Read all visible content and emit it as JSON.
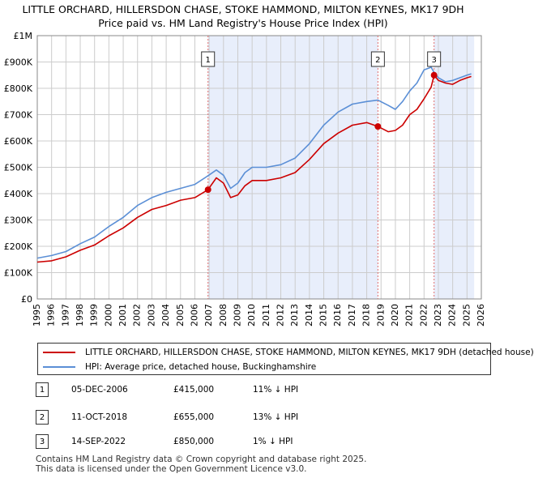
{
  "title_line1": "LITTLE ORCHARD, HILLERSDON CHASE, STOKE HAMMOND, MILTON KEYNES, MK17 9DH",
  "title_line2": "Price paid vs. HM Land Registry's House Price Index (HPI)",
  "colors": {
    "property": "#cc0000",
    "hpi": "#5b8fd6",
    "shade": "#e8eefb",
    "grid": "#cccccc",
    "vline": "#e07070"
  },
  "chart_data": {
    "type": "line",
    "title": "Price paid vs. HM Land Registry's House Price Index (HPI)",
    "xlim": [
      1995,
      2026
    ],
    "ylim": [
      0,
      1000000
    ],
    "x_ticks": [
      "1995",
      "1996",
      "1997",
      "1998",
      "1999",
      "2000",
      "2001",
      "2002",
      "2003",
      "2004",
      "2005",
      "2006",
      "2007",
      "2008",
      "2009",
      "2010",
      "2011",
      "2012",
      "2013",
      "2014",
      "2015",
      "2016",
      "2017",
      "2018",
      "2019",
      "2020",
      "2021",
      "2022",
      "2023",
      "2024",
      "2025",
      "2026"
    ],
    "y_ticks": [
      {
        "value": 0,
        "label": "£0"
      },
      {
        "value": 100000,
        "label": "£100K"
      },
      {
        "value": 200000,
        "label": "£200K"
      },
      {
        "value": 300000,
        "label": "£300K"
      },
      {
        "value": 400000,
        "label": "£400K"
      },
      {
        "value": 500000,
        "label": "£500K"
      },
      {
        "value": 600000,
        "label": "£600K"
      },
      {
        "value": 700000,
        "label": "£700K"
      },
      {
        "value": 800000,
        "label": "£800K"
      },
      {
        "value": 900000,
        "label": "£900K"
      },
      {
        "value": 1000000,
        "label": "£1M"
      }
    ],
    "shaded_periods": [
      [
        2006.92,
        2018.78
      ],
      [
        2022.7,
        2025.5
      ]
    ],
    "series": [
      {
        "name": "LITTLE ORCHARD, HILLERSDON CHASE, STOKE HAMMOND, MILTON KEYNES, MK17 9DH (detached house)",
        "color": "#cc0000",
        "x": [
          1995.0,
          1996.0,
          1997.0,
          1998.0,
          1999.0,
          2000.0,
          2001.0,
          2002.0,
          2003.0,
          2004.0,
          2005.0,
          2006.0,
          2006.92,
          2007.5,
          2008.0,
          2008.5,
          2009.0,
          2009.5,
          2010.0,
          2011.0,
          2012.0,
          2013.0,
          2014.0,
          2015.0,
          2016.0,
          2017.0,
          2018.0,
          2018.78,
          2019.5,
          2020.0,
          2020.5,
          2021.0,
          2021.5,
          2022.0,
          2022.5,
          2022.7,
          2023.0,
          2023.5,
          2024.0,
          2024.5,
          2025.0,
          2025.3
        ],
        "y": [
          140000,
          145000,
          160000,
          185000,
          205000,
          240000,
          270000,
          310000,
          340000,
          355000,
          375000,
          385000,
          415000,
          460000,
          440000,
          385000,
          395000,
          430000,
          450000,
          450000,
          460000,
          480000,
          530000,
          590000,
          630000,
          660000,
          670000,
          655000,
          635000,
          640000,
          660000,
          700000,
          720000,
          760000,
          805000,
          850000,
          830000,
          820000,
          815000,
          830000,
          840000,
          845000
        ]
      },
      {
        "name": "HPI: Average price, detached house, Buckinghamshire",
        "color": "#5b8fd6",
        "x": [
          1995.0,
          1996.0,
          1997.0,
          1998.0,
          1999.0,
          2000.0,
          2001.0,
          2002.0,
          2003.0,
          2004.0,
          2005.0,
          2006.0,
          2006.92,
          2007.5,
          2008.0,
          2008.5,
          2009.0,
          2009.5,
          2010.0,
          2011.0,
          2012.0,
          2013.0,
          2014.0,
          2015.0,
          2016.0,
          2017.0,
          2018.0,
          2018.78,
          2019.5,
          2020.0,
          2020.5,
          2021.0,
          2021.5,
          2022.0,
          2022.5,
          2022.7,
          2023.0,
          2023.5,
          2024.0,
          2024.5,
          2025.0,
          2025.3
        ],
        "y": [
          155000,
          165000,
          180000,
          210000,
          235000,
          275000,
          310000,
          355000,
          385000,
          405000,
          420000,
          435000,
          468000,
          490000,
          470000,
          420000,
          440000,
          480000,
          500000,
          500000,
          510000,
          535000,
          590000,
          660000,
          710000,
          740000,
          750000,
          755000,
          735000,
          720000,
          750000,
          790000,
          820000,
          870000,
          880000,
          860000,
          840000,
          825000,
          830000,
          840000,
          850000,
          855000
        ]
      }
    ],
    "sales": [
      {
        "id": "1",
        "x": 2006.92,
        "y": 415000
      },
      {
        "id": "2",
        "x": 2018.78,
        "y": 655000
      },
      {
        "id": "3",
        "x": 2022.7,
        "y": 850000
      }
    ]
  },
  "legend": {
    "property_label": "LITTLE ORCHARD, HILLERSDON CHASE, STOKE HAMMOND, MILTON KEYNES, MK17 9DH (detached house)",
    "hpi_label": "HPI: Average price, detached house, Buckinghamshire"
  },
  "sales_table": [
    {
      "num": "1",
      "date": "05-DEC-2006",
      "price": "£415,000",
      "hpi": "11% ↓ HPI"
    },
    {
      "num": "2",
      "date": "11-OCT-2018",
      "price": "£655,000",
      "hpi": "13% ↓ HPI"
    },
    {
      "num": "3",
      "date": "14-SEP-2022",
      "price": "£850,000",
      "hpi": "1% ↓ HPI"
    }
  ],
  "footer_line1": "Contains HM Land Registry data © Crown copyright and database right 2025.",
  "footer_line2": "This data is licensed under the Open Government Licence v3.0."
}
